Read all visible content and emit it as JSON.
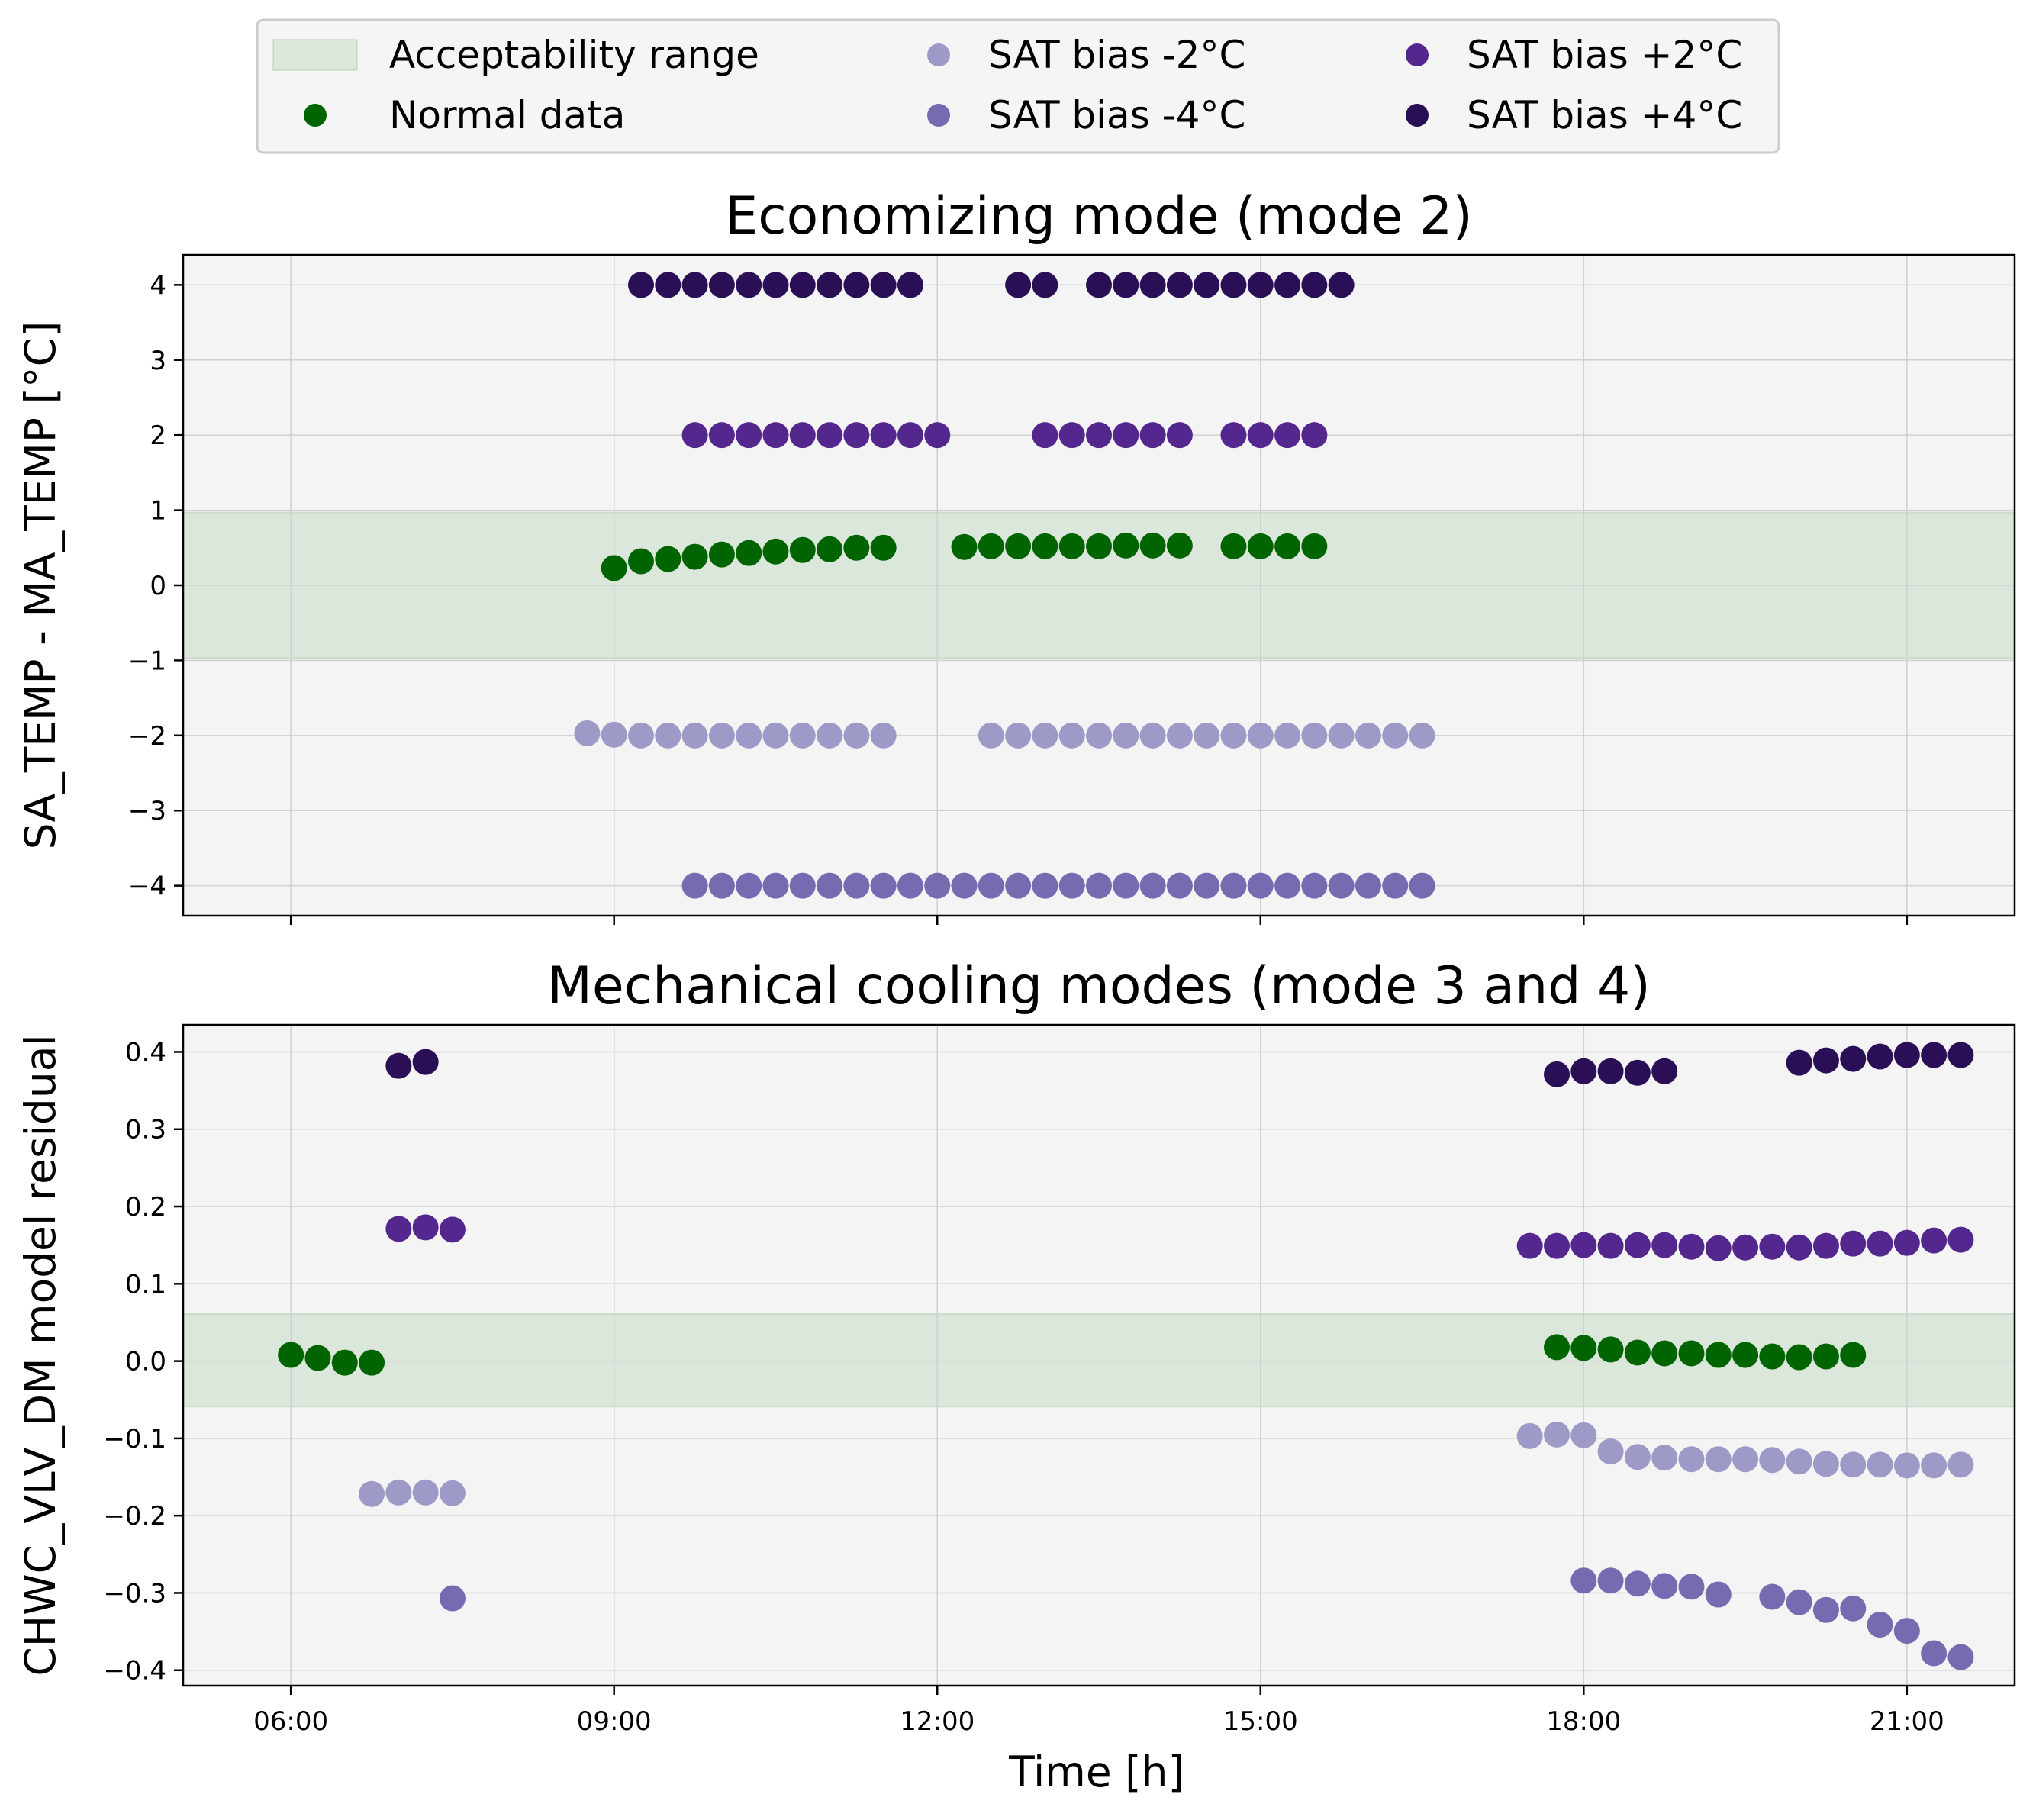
{
  "legend": {
    "entries": [
      {
        "label": "Acceptability range",
        "kind": "band",
        "color": "#2e8b2e"
      },
      {
        "label": "Normal data",
        "kind": "marker",
        "color": "#006400"
      },
      {
        "label": "SAT bias -2°C",
        "kind": "marker",
        "color": "#9e9ac8"
      },
      {
        "label": "SAT bias -4°C",
        "kind": "marker",
        "color": "#756bb1"
      },
      {
        "label": "SAT bias +2°C",
        "kind": "marker",
        "color": "#54278f"
      },
      {
        "label": "SAT bias +4°C",
        "kind": "marker",
        "color": "#2a0f57"
      }
    ]
  },
  "xlabel": "Time [h]",
  "x_ticks": [
    "06:00",
    "09:00",
    "12:00",
    "15:00",
    "18:00",
    "21:00"
  ],
  "chart_data": [
    {
      "type": "scatter",
      "title": "Economizing mode (mode 2)",
      "ylabel": "SA_TEMP - MA_TEMP [°C]",
      "xlim": [
        "05:00",
        "22:00"
      ],
      "ylim": [
        -4.4,
        4.4
      ],
      "yticks": [
        4,
        3,
        2,
        1,
        0,
        -1,
        -2,
        -3,
        -4
      ],
      "ytick_labels": [
        "4",
        "3",
        "2",
        "1",
        "0",
        "−1",
        "−2",
        "−3",
        "−4"
      ],
      "grid": true,
      "acceptability_range": [
        -0.97,
        0.97
      ],
      "series": [
        {
          "name": "Normal data",
          "color": "#006400",
          "points": [
            [
              "09:00",
              0.23
            ],
            [
              "09:15",
              0.32
            ],
            [
              "09:30",
              0.35
            ],
            [
              "09:45",
              0.38
            ],
            [
              "10:00",
              0.41
            ],
            [
              "10:15",
              0.43
            ],
            [
              "10:30",
              0.45
            ],
            [
              "10:45",
              0.47
            ],
            [
              "11:00",
              0.48
            ],
            [
              "11:15",
              0.5
            ],
            [
              "11:30",
              0.5
            ],
            [
              "12:15",
              0.51
            ],
            [
              "12:30",
              0.52
            ],
            [
              "12:45",
              0.52
            ],
            [
              "13:00",
              0.52
            ],
            [
              "13:15",
              0.52
            ],
            [
              "13:30",
              0.52
            ],
            [
              "13:45",
              0.53
            ],
            [
              "14:00",
              0.53
            ],
            [
              "14:15",
              0.53
            ],
            [
              "14:45",
              0.52
            ],
            [
              "15:00",
              0.52
            ],
            [
              "15:15",
              0.52
            ],
            [
              "15:30",
              0.52
            ]
          ]
        },
        {
          "name": "SAT bias -2°C",
          "color": "#9e9ac8",
          "points": [
            [
              "08:45",
              -1.97
            ],
            [
              "09:00",
              -1.99
            ],
            [
              "09:15",
              -2.0
            ],
            [
              "09:30",
              -2.0
            ],
            [
              "09:45",
              -2.0
            ],
            [
              "10:00",
              -2.0
            ],
            [
              "10:15",
              -2.0
            ],
            [
              "10:30",
              -2.0
            ],
            [
              "10:45",
              -2.0
            ],
            [
              "11:00",
              -2.0
            ],
            [
              "11:15",
              -2.0
            ],
            [
              "11:30",
              -2.0
            ],
            [
              "12:30",
              -2.0
            ],
            [
              "12:45",
              -2.0
            ],
            [
              "13:00",
              -2.0
            ],
            [
              "13:15",
              -2.0
            ],
            [
              "13:30",
              -2.0
            ],
            [
              "13:45",
              -2.0
            ],
            [
              "14:00",
              -2.0
            ],
            [
              "14:15",
              -2.0
            ],
            [
              "14:30",
              -2.0
            ],
            [
              "14:45",
              -2.0
            ],
            [
              "15:00",
              -2.0
            ],
            [
              "15:15",
              -2.0
            ],
            [
              "15:30",
              -2.0
            ],
            [
              "15:45",
              -2.0
            ],
            [
              "16:00",
              -2.0
            ],
            [
              "16:15",
              -2.0
            ],
            [
              "16:30",
              -2.0
            ]
          ]
        },
        {
          "name": "SAT bias -4°C",
          "color": "#756bb1",
          "points": [
            [
              "09:45",
              -4.0
            ],
            [
              "10:00",
              -4.0
            ],
            [
              "10:15",
              -4.0
            ],
            [
              "10:30",
              -4.0
            ],
            [
              "10:45",
              -4.0
            ],
            [
              "11:00",
              -4.0
            ],
            [
              "11:15",
              -4.0
            ],
            [
              "11:30",
              -4.0
            ],
            [
              "11:45",
              -4.0
            ],
            [
              "12:00",
              -4.0
            ],
            [
              "12:15",
              -4.0
            ],
            [
              "12:30",
              -4.0
            ],
            [
              "12:45",
              -4.0
            ],
            [
              "13:00",
              -4.0
            ],
            [
              "13:15",
              -4.0
            ],
            [
              "13:30",
              -4.0
            ],
            [
              "13:45",
              -4.0
            ],
            [
              "14:00",
              -4.0
            ],
            [
              "14:15",
              -4.0
            ],
            [
              "14:30",
              -4.0
            ],
            [
              "14:45",
              -4.0
            ],
            [
              "15:00",
              -4.0
            ],
            [
              "15:15",
              -4.0
            ],
            [
              "15:30",
              -4.0
            ],
            [
              "15:45",
              -4.0
            ],
            [
              "16:00",
              -4.0
            ],
            [
              "16:15",
              -4.0
            ],
            [
              "16:30",
              -4.0
            ]
          ]
        },
        {
          "name": "SAT bias +2°C",
          "color": "#54278f",
          "points": [
            [
              "09:45",
              2.0
            ],
            [
              "10:00",
              2.0
            ],
            [
              "10:15",
              2.0
            ],
            [
              "10:30",
              2.0
            ],
            [
              "10:45",
              2.0
            ],
            [
              "11:00",
              2.0
            ],
            [
              "11:15",
              2.0
            ],
            [
              "11:30",
              2.0
            ],
            [
              "11:45",
              2.0
            ],
            [
              "12:00",
              2.0
            ],
            [
              "13:00",
              2.0
            ],
            [
              "13:15",
              2.0
            ],
            [
              "13:30",
              2.0
            ],
            [
              "13:45",
              2.0
            ],
            [
              "14:00",
              2.0
            ],
            [
              "14:15",
              2.0
            ],
            [
              "14:45",
              2.0
            ],
            [
              "15:00",
              2.0
            ],
            [
              "15:15",
              2.0
            ],
            [
              "15:30",
              2.0
            ]
          ]
        },
        {
          "name": "SAT bias +4°C",
          "color": "#2a0f57",
          "points": [
            [
              "09:15",
              4.0
            ],
            [
              "09:30",
              4.0
            ],
            [
              "09:45",
              4.0
            ],
            [
              "10:00",
              4.0
            ],
            [
              "10:15",
              4.0
            ],
            [
              "10:30",
              4.0
            ],
            [
              "10:45",
              4.0
            ],
            [
              "11:00",
              4.0
            ],
            [
              "11:15",
              4.0
            ],
            [
              "11:30",
              4.0
            ],
            [
              "11:45",
              4.0
            ],
            [
              "12:45",
              4.0
            ],
            [
              "13:00",
              4.0
            ],
            [
              "13:30",
              4.0
            ],
            [
              "13:45",
              4.0
            ],
            [
              "14:00",
              4.0
            ],
            [
              "14:15",
              4.0
            ],
            [
              "14:30",
              4.0
            ],
            [
              "14:45",
              4.0
            ],
            [
              "15:00",
              4.0
            ],
            [
              "15:15",
              4.0
            ],
            [
              "15:30",
              4.0
            ],
            [
              "15:45",
              4.0
            ]
          ]
        }
      ]
    },
    {
      "type": "scatter",
      "title": "Mechanical cooling modes (mode 3 and 4)",
      "ylabel": "CHWC_VLV_DM model residual",
      "xlim": [
        "05:00",
        "22:00"
      ],
      "ylim": [
        -0.42,
        0.435
      ],
      "yticks": [
        0.4,
        0.3,
        0.2,
        0.1,
        0.0,
        -0.1,
        -0.2,
        -0.3,
        -0.4
      ],
      "ytick_labels": [
        "0.4",
        "0.3",
        "0.2",
        "0.1",
        "0.0",
        "−0.1",
        "−0.2",
        "−0.3",
        "−0.4"
      ],
      "grid": true,
      "acceptability_range": [
        -0.059,
        0.061
      ],
      "series": [
        {
          "name": "Normal data",
          "color": "#006400",
          "points": [
            [
              "06:00",
              0.008
            ],
            [
              "06:15",
              0.004
            ],
            [
              "06:30",
              -0.002
            ],
            [
              "06:45",
              -0.002
            ],
            [
              "17:45",
              0.018
            ],
            [
              "18:00",
              0.017
            ],
            [
              "18:15",
              0.015
            ],
            [
              "18:30",
              0.011
            ],
            [
              "18:45",
              0.01
            ],
            [
              "19:00",
              0.01
            ],
            [
              "19:15",
              0.008
            ],
            [
              "19:30",
              0.008
            ],
            [
              "19:45",
              0.006
            ],
            [
              "20:00",
              0.005
            ],
            [
              "20:15",
              0.006
            ],
            [
              "20:30",
              0.008
            ]
          ]
        },
        {
          "name": "SAT bias -2°C",
          "color": "#9e9ac8",
          "points": [
            [
              "06:45",
              -0.172
            ],
            [
              "07:00",
              -0.17
            ],
            [
              "07:15",
              -0.17
            ],
            [
              "07:30",
              -0.171
            ],
            [
              "17:30",
              -0.097
            ],
            [
              "17:45",
              -0.095
            ],
            [
              "18:00",
              -0.096
            ],
            [
              "18:15",
              -0.117
            ],
            [
              "18:30",
              -0.124
            ],
            [
              "18:45",
              -0.125
            ],
            [
              "19:00",
              -0.127
            ],
            [
              "19:15",
              -0.127
            ],
            [
              "19:30",
              -0.127
            ],
            [
              "19:45",
              -0.128
            ],
            [
              "20:00",
              -0.13
            ],
            [
              "20:15",
              -0.133
            ],
            [
              "20:30",
              -0.134
            ],
            [
              "20:45",
              -0.134
            ],
            [
              "21:00",
              -0.135
            ],
            [
              "21:15",
              -0.135
            ],
            [
              "21:30",
              -0.134
            ]
          ]
        },
        {
          "name": "SAT bias -4°C",
          "color": "#756bb1",
          "points": [
            [
              "07:30",
              -0.307
            ],
            [
              "18:00",
              -0.284
            ],
            [
              "18:15",
              -0.284
            ],
            [
              "18:30",
              -0.288
            ],
            [
              "18:45",
              -0.291
            ],
            [
              "19:00",
              -0.292
            ],
            [
              "19:15",
              -0.302
            ],
            [
              "19:45",
              -0.305
            ],
            [
              "20:00",
              -0.312
            ],
            [
              "20:15",
              -0.322
            ],
            [
              "20:30",
              -0.32
            ],
            [
              "20:45",
              -0.341
            ],
            [
              "21:00",
              -0.349
            ],
            [
              "21:15",
              -0.378
            ],
            [
              "21:30",
              -0.383
            ]
          ]
        },
        {
          "name": "SAT bias +2°C",
          "color": "#54278f",
          "points": [
            [
              "07:00",
              0.171
            ],
            [
              "07:15",
              0.173
            ],
            [
              "07:30",
              0.17
            ],
            [
              "17:30",
              0.149
            ],
            [
              "17:45",
              0.149
            ],
            [
              "18:00",
              0.15
            ],
            [
              "18:15",
              0.149
            ],
            [
              "18:30",
              0.15
            ],
            [
              "18:45",
              0.15
            ],
            [
              "19:00",
              0.148
            ],
            [
              "19:15",
              0.146
            ],
            [
              "19:30",
              0.147
            ],
            [
              "19:45",
              0.148
            ],
            [
              "20:00",
              0.147
            ],
            [
              "20:15",
              0.149
            ],
            [
              "20:30",
              0.152
            ],
            [
              "20:45",
              0.152
            ],
            [
              "21:00",
              0.153
            ],
            [
              "21:15",
              0.156
            ],
            [
              "21:30",
              0.157
            ]
          ]
        },
        {
          "name": "SAT bias +4°C",
          "color": "#2a0f57",
          "points": [
            [
              "07:00",
              0.382
            ],
            [
              "07:15",
              0.387
            ],
            [
              "17:45",
              0.371
            ],
            [
              "18:00",
              0.375
            ],
            [
              "18:15",
              0.375
            ],
            [
              "18:30",
              0.373
            ],
            [
              "18:45",
              0.375
            ],
            [
              "20:00",
              0.386
            ],
            [
              "20:15",
              0.389
            ],
            [
              "20:30",
              0.391
            ],
            [
              "20:45",
              0.394
            ],
            [
              "21:00",
              0.396
            ],
            [
              "21:15",
              0.396
            ],
            [
              "21:30",
              0.396
            ]
          ]
        }
      ]
    }
  ]
}
